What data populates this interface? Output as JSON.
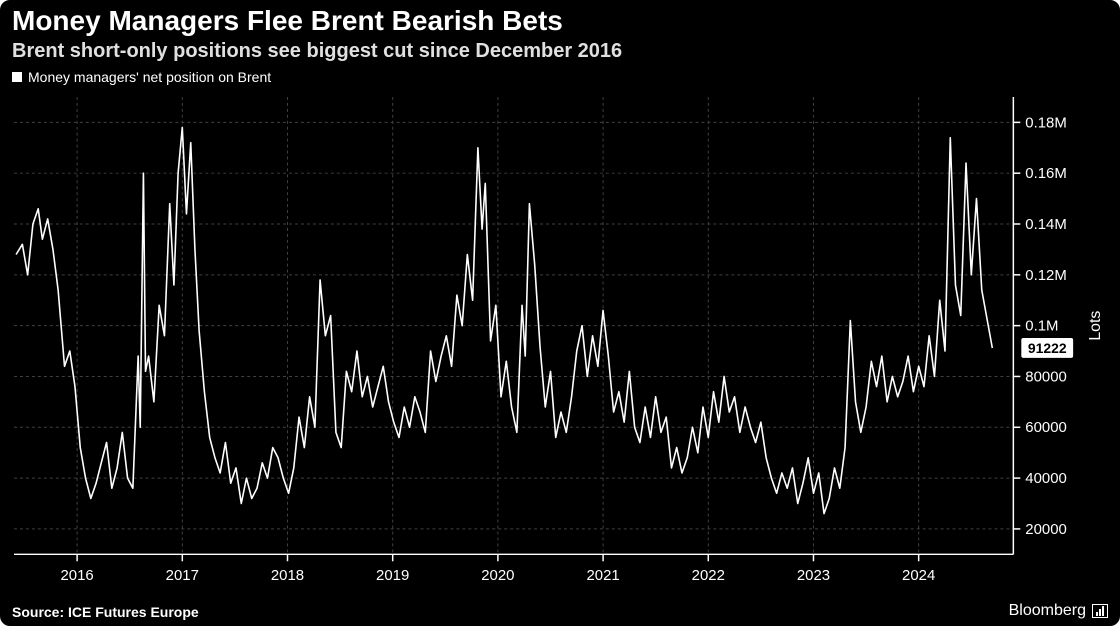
{
  "header": {
    "title": "Money Managers Flee Brent Bearish Bets",
    "subtitle": "Brent short-only positions see biggest cut since December 2016",
    "legend_label": "Money managers' net position on Brent"
  },
  "footer": {
    "source": "Source: ICE Futures Europe",
    "brand": "Bloomberg"
  },
  "chart": {
    "type": "line",
    "background_color": "#000000",
    "grid_color": "#404040",
    "axis_color": "#ffffff",
    "line_color": "#ffffff",
    "line_width": 1.6,
    "grid_dash": "3 3",
    "title_fontsize": 28,
    "subtitle_fontsize": 20,
    "label_fontsize": 15,
    "y_axis_label": "Lots",
    "y_axis_side": "right",
    "y_axis_label_fontsize": 16,
    "x_range": [
      2015.4,
      2024.9
    ],
    "x_ticks": [
      2016,
      2017,
      2018,
      2019,
      2020,
      2021,
      2022,
      2023,
      2024
    ],
    "x_tick_labels": [
      "2016",
      "2017",
      "2018",
      "2019",
      "2020",
      "2021",
      "2022",
      "2023",
      "2024"
    ],
    "y_range": [
      10000,
      190000
    ],
    "y_ticks": [
      20000,
      40000,
      60000,
      80000,
      100000,
      120000,
      140000,
      160000,
      180000
    ],
    "y_tick_labels": [
      "20000",
      "40000",
      "60000",
      "80000",
      "0.1M",
      "0.12M",
      "0.14M",
      "0.16M",
      "0.18M"
    ],
    "last_value": 91222,
    "last_value_label": "91222",
    "series": [
      [
        2015.42,
        128000
      ],
      [
        2015.48,
        132000
      ],
      [
        2015.53,
        120000
      ],
      [
        2015.58,
        140000
      ],
      [
        2015.63,
        146000
      ],
      [
        2015.67,
        134000
      ],
      [
        2015.72,
        142000
      ],
      [
        2015.77,
        130000
      ],
      [
        2015.82,
        114000
      ],
      [
        2015.88,
        84000
      ],
      [
        2015.93,
        90000
      ],
      [
        2015.98,
        76000
      ],
      [
        2016.03,
        52000
      ],
      [
        2016.08,
        40000
      ],
      [
        2016.13,
        32000
      ],
      [
        2016.18,
        38000
      ],
      [
        2016.23,
        46000
      ],
      [
        2016.28,
        54000
      ],
      [
        2016.33,
        36000
      ],
      [
        2016.38,
        44000
      ],
      [
        2016.43,
        58000
      ],
      [
        2016.48,
        40000
      ],
      [
        2016.53,
        36000
      ],
      [
        2016.58,
        88000
      ],
      [
        2016.6,
        60000
      ],
      [
        2016.63,
        160000
      ],
      [
        2016.65,
        82000
      ],
      [
        2016.68,
        88000
      ],
      [
        2016.73,
        70000
      ],
      [
        2016.78,
        108000
      ],
      [
        2016.83,
        96000
      ],
      [
        2016.88,
        148000
      ],
      [
        2016.92,
        116000
      ],
      [
        2016.96,
        160000
      ],
      [
        2017.0,
        178000
      ],
      [
        2017.04,
        144000
      ],
      [
        2017.08,
        172000
      ],
      [
        2017.12,
        130000
      ],
      [
        2017.16,
        98000
      ],
      [
        2017.21,
        74000
      ],
      [
        2017.26,
        56000
      ],
      [
        2017.31,
        48000
      ],
      [
        2017.36,
        42000
      ],
      [
        2017.41,
        54000
      ],
      [
        2017.46,
        38000
      ],
      [
        2017.51,
        44000
      ],
      [
        2017.56,
        30000
      ],
      [
        2017.61,
        40000
      ],
      [
        2017.66,
        32000
      ],
      [
        2017.71,
        36000
      ],
      [
        2017.76,
        46000
      ],
      [
        2017.81,
        40000
      ],
      [
        2017.86,
        52000
      ],
      [
        2017.91,
        48000
      ],
      [
        2017.96,
        40000
      ],
      [
        2018.01,
        34000
      ],
      [
        2018.06,
        44000
      ],
      [
        2018.11,
        64000
      ],
      [
        2018.16,
        52000
      ],
      [
        2018.21,
        72000
      ],
      [
        2018.26,
        60000
      ],
      [
        2018.31,
        118000
      ],
      [
        2018.36,
        96000
      ],
      [
        2018.41,
        104000
      ],
      [
        2018.46,
        58000
      ],
      [
        2018.51,
        52000
      ],
      [
        2018.56,
        82000
      ],
      [
        2018.61,
        74000
      ],
      [
        2018.66,
        90000
      ],
      [
        2018.71,
        72000
      ],
      [
        2018.76,
        80000
      ],
      [
        2018.81,
        68000
      ],
      [
        2018.86,
        76000
      ],
      [
        2018.91,
        84000
      ],
      [
        2018.96,
        70000
      ],
      [
        2019.01,
        62000
      ],
      [
        2019.06,
        56000
      ],
      [
        2019.11,
        68000
      ],
      [
        2019.16,
        60000
      ],
      [
        2019.21,
        72000
      ],
      [
        2019.26,
        66000
      ],
      [
        2019.31,
        58000
      ],
      [
        2019.36,
        90000
      ],
      [
        2019.41,
        78000
      ],
      [
        2019.46,
        88000
      ],
      [
        2019.51,
        96000
      ],
      [
        2019.56,
        84000
      ],
      [
        2019.61,
        112000
      ],
      [
        2019.66,
        100000
      ],
      [
        2019.71,
        128000
      ],
      [
        2019.76,
        110000
      ],
      [
        2019.81,
        170000
      ],
      [
        2019.85,
        138000
      ],
      [
        2019.88,
        156000
      ],
      [
        2019.93,
        94000
      ],
      [
        2019.98,
        108000
      ],
      [
        2020.03,
        72000
      ],
      [
        2020.08,
        86000
      ],
      [
        2020.13,
        68000
      ],
      [
        2020.18,
        58000
      ],
      [
        2020.23,
        108000
      ],
      [
        2020.26,
        88000
      ],
      [
        2020.3,
        148000
      ],
      [
        2020.35,
        124000
      ],
      [
        2020.4,
        92000
      ],
      [
        2020.45,
        68000
      ],
      [
        2020.5,
        82000
      ],
      [
        2020.55,
        56000
      ],
      [
        2020.6,
        66000
      ],
      [
        2020.65,
        58000
      ],
      [
        2020.7,
        72000
      ],
      [
        2020.75,
        90000
      ],
      [
        2020.8,
        100000
      ],
      [
        2020.85,
        80000
      ],
      [
        2020.9,
        96000
      ],
      [
        2020.95,
        84000
      ],
      [
        2021.0,
        106000
      ],
      [
        2021.05,
        88000
      ],
      [
        2021.1,
        66000
      ],
      [
        2021.15,
        74000
      ],
      [
        2021.2,
        62000
      ],
      [
        2021.25,
        82000
      ],
      [
        2021.3,
        60000
      ],
      [
        2021.35,
        54000
      ],
      [
        2021.4,
        68000
      ],
      [
        2021.45,
        56000
      ],
      [
        2021.5,
        72000
      ],
      [
        2021.55,
        58000
      ],
      [
        2021.6,
        64000
      ],
      [
        2021.65,
        44000
      ],
      [
        2021.7,
        52000
      ],
      [
        2021.75,
        42000
      ],
      [
        2021.8,
        48000
      ],
      [
        2021.85,
        60000
      ],
      [
        2021.9,
        50000
      ],
      [
        2021.95,
        68000
      ],
      [
        2022.0,
        56000
      ],
      [
        2022.05,
        74000
      ],
      [
        2022.1,
        62000
      ],
      [
        2022.15,
        80000
      ],
      [
        2022.2,
        66000
      ],
      [
        2022.25,
        72000
      ],
      [
        2022.3,
        58000
      ],
      [
        2022.35,
        68000
      ],
      [
        2022.4,
        60000
      ],
      [
        2022.45,
        54000
      ],
      [
        2022.5,
        62000
      ],
      [
        2022.55,
        48000
      ],
      [
        2022.6,
        40000
      ],
      [
        2022.65,
        34000
      ],
      [
        2022.7,
        42000
      ],
      [
        2022.75,
        36000
      ],
      [
        2022.8,
        44000
      ],
      [
        2022.85,
        30000
      ],
      [
        2022.9,
        38000
      ],
      [
        2022.95,
        48000
      ],
      [
        2023.0,
        34000
      ],
      [
        2023.05,
        42000
      ],
      [
        2023.1,
        26000
      ],
      [
        2023.15,
        32000
      ],
      [
        2023.2,
        44000
      ],
      [
        2023.25,
        36000
      ],
      [
        2023.3,
        52000
      ],
      [
        2023.35,
        102000
      ],
      [
        2023.4,
        70000
      ],
      [
        2023.45,
        58000
      ],
      [
        2023.5,
        68000
      ],
      [
        2023.55,
        86000
      ],
      [
        2023.6,
        76000
      ],
      [
        2023.65,
        88000
      ],
      [
        2023.7,
        70000
      ],
      [
        2023.75,
        80000
      ],
      [
        2023.8,
        72000
      ],
      [
        2023.85,
        78000
      ],
      [
        2023.9,
        88000
      ],
      [
        2023.95,
        74000
      ],
      [
        2024.0,
        84000
      ],
      [
        2024.05,
        76000
      ],
      [
        2024.1,
        96000
      ],
      [
        2024.15,
        80000
      ],
      [
        2024.2,
        110000
      ],
      [
        2024.25,
        90000
      ],
      [
        2024.3,
        174000
      ],
      [
        2024.35,
        116000
      ],
      [
        2024.4,
        104000
      ],
      [
        2024.45,
        164000
      ],
      [
        2024.5,
        120000
      ],
      [
        2024.55,
        150000
      ],
      [
        2024.6,
        114000
      ],
      [
        2024.7,
        91222
      ]
    ]
  }
}
